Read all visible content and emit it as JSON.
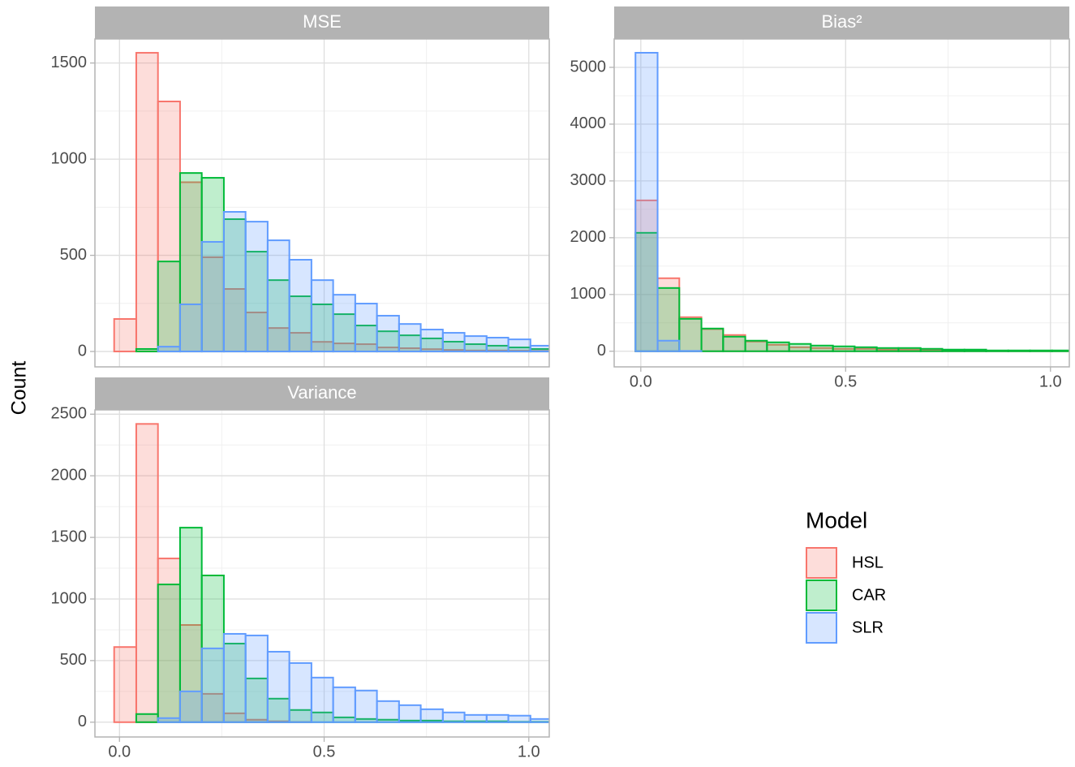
{
  "shared": {
    "y_label": "Count",
    "legend_title": "Model"
  },
  "chart_data": [
    {
      "type": "histogram",
      "title": "MSE",
      "bins": [
        -0.013,
        0.041,
        0.094,
        0.148,
        0.201,
        0.255,
        0.308,
        0.362,
        0.415,
        0.469,
        0.522,
        0.576,
        0.629,
        0.683,
        0.736,
        0.79,
        0.843,
        0.897,
        0.95,
        1.004,
        1.057
      ],
      "series": [
        {
          "name": "HSL",
          "color": "#F8766D",
          "values": [
            169,
            1553,
            1300,
            880,
            490,
            325,
            203,
            122,
            97,
            50,
            42,
            38,
            21,
            17,
            12,
            8,
            5,
            5,
            4,
            3
          ]
        },
        {
          "name": "CAR",
          "color": "#00BA38",
          "values": [
            0,
            13,
            468,
            928,
            903,
            688,
            519,
            371,
            287,
            245,
            194,
            135,
            105,
            84,
            68,
            51,
            38,
            30,
            21,
            13
          ]
        },
        {
          "name": "SLR",
          "color": "#619CFF",
          "values": [
            0,
            0,
            25,
            245,
            570,
            726,
            675,
            578,
            477,
            371,
            295,
            249,
            186,
            143,
            114,
            97,
            80,
            72,
            63,
            30
          ]
        }
      ],
      "xlim": [
        -0.06,
        1.05
      ],
      "xticks": [
        0,
        0.5,
        1
      ],
      "show_x_tick_labels": false,
      "ylim": [
        -80,
        1625
      ],
      "yticks": [
        0,
        500,
        1000,
        1500
      ],
      "grid": true
    },
    {
      "type": "histogram",
      "title": "Bias²",
      "bins": [
        -0.013,
        0.041,
        0.094,
        0.148,
        0.201,
        0.255,
        0.308,
        0.362,
        0.415,
        0.469,
        0.522,
        0.576,
        0.629,
        0.683,
        0.736,
        0.79,
        0.843,
        0.897,
        0.95,
        1.004,
        1.057
      ],
      "series": [
        {
          "name": "HSL",
          "color": "#F8766D",
          "values": [
            2657,
            1286,
            600,
            390,
            286,
            171,
            114,
            71,
            57,
            43,
            43,
            29,
            29,
            20,
            14,
            14,
            10,
            10,
            7,
            7
          ]
        },
        {
          "name": "CAR",
          "color": "#00BA38",
          "values": [
            2086,
            1114,
            571,
            400,
            257,
            186,
            157,
            129,
            100,
            86,
            71,
            57,
            57,
            43,
            29,
            29,
            14,
            14,
            14,
            14
          ]
        },
        {
          "name": "SLR",
          "color": "#619CFF",
          "values": [
            5257,
            186,
            5,
            0,
            0,
            0,
            0,
            0,
            0,
            0,
            0,
            0,
            0,
            0,
            0,
            0,
            0,
            0,
            0,
            0
          ]
        }
      ],
      "xlim": [
        -0.065,
        1.046
      ],
      "xticks": [
        {
          "value": 0,
          "label": "0.0"
        },
        0.5,
        {
          "value": 1,
          "label": "1.0"
        }
      ],
      "show_x_tick_labels": true,
      "ylim": [
        -275,
        5500
      ],
      "yticks": [
        0,
        1000,
        2000,
        3000,
        4000,
        5000
      ],
      "grid": true
    },
    {
      "type": "histogram",
      "title": "Variance",
      "bins": [
        -0.013,
        0.041,
        0.094,
        0.148,
        0.201,
        0.255,
        0.308,
        0.362,
        0.415,
        0.469,
        0.522,
        0.576,
        0.629,
        0.683,
        0.736,
        0.79,
        0.843,
        0.897,
        0.95,
        1.004,
        1.057
      ],
      "series": [
        {
          "name": "HSL",
          "color": "#F8766D",
          "values": [
            610,
            2421,
            1329,
            789,
            230,
            72,
            20,
            7,
            2,
            0,
            0,
            0,
            0,
            0,
            0,
            0,
            0,
            0,
            0,
            0
          ]
        },
        {
          "name": "CAR",
          "color": "#00BA38",
          "values": [
            0,
            66,
            1118,
            1579,
            1191,
            638,
            355,
            191,
            99,
            79,
            39,
            26,
            20,
            13,
            13,
            7,
            7,
            7,
            3,
            3
          ]
        },
        {
          "name": "SLR",
          "color": "#619CFF",
          "values": [
            0,
            0,
            33,
            250,
            599,
            717,
            704,
            572,
            480,
            362,
            283,
            257,
            171,
            138,
            105,
            79,
            59,
            59,
            53,
            26
          ]
        }
      ],
      "xlim": [
        -0.06,
        1.05
      ],
      "xticks": [
        {
          "value": 0,
          "label": "0.0"
        },
        0.5,
        {
          "value": 1,
          "label": "1.0"
        }
      ],
      "show_x_tick_labels": true,
      "ylim": [
        -120,
        2535
      ],
      "yticks": [
        0,
        500,
        1000,
        1500,
        2000,
        2500
      ],
      "grid": true
    }
  ]
}
